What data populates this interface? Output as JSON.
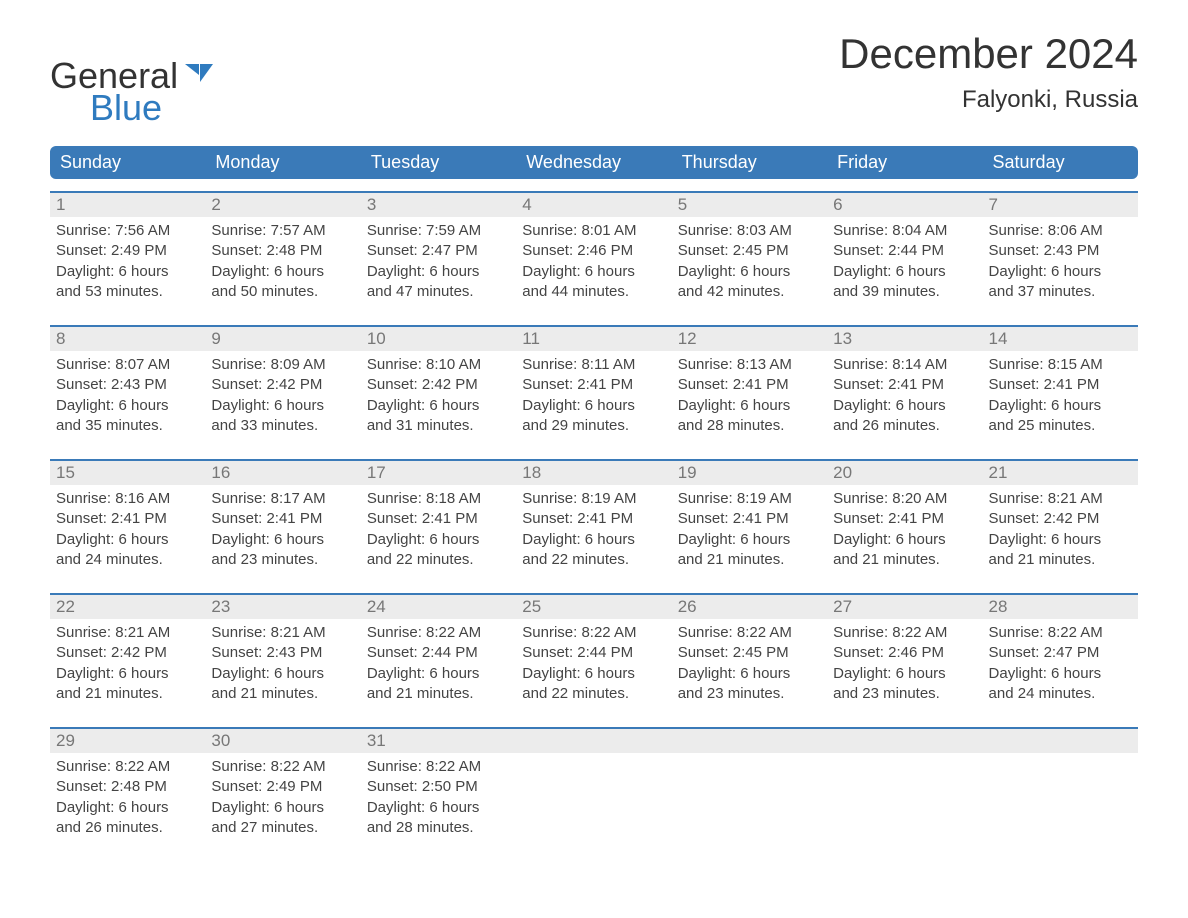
{
  "logo": {
    "general": "General",
    "blue": "Blue",
    "icon_color": "#2f7bbf"
  },
  "title": "December 2024",
  "location": "Falyonki, Russia",
  "colors": {
    "header_bg": "#3a7ab8",
    "header_text": "#ffffff",
    "daynum_bg": "#ececec",
    "daynum_text": "#777777",
    "body_text": "#444444",
    "week_border": "#3a7ab8",
    "logo_blue": "#2f7bbf",
    "page_bg": "#ffffff"
  },
  "dayheads": [
    "Sunday",
    "Monday",
    "Tuesday",
    "Wednesday",
    "Thursday",
    "Friday",
    "Saturday"
  ],
  "weeks": [
    [
      {
        "n": "1",
        "sr": "Sunrise: 7:56 AM",
        "ss": "Sunset: 2:49 PM",
        "d1": "Daylight: 6 hours",
        "d2": "and 53 minutes."
      },
      {
        "n": "2",
        "sr": "Sunrise: 7:57 AM",
        "ss": "Sunset: 2:48 PM",
        "d1": "Daylight: 6 hours",
        "d2": "and 50 minutes."
      },
      {
        "n": "3",
        "sr": "Sunrise: 7:59 AM",
        "ss": "Sunset: 2:47 PM",
        "d1": "Daylight: 6 hours",
        "d2": "and 47 minutes."
      },
      {
        "n": "4",
        "sr": "Sunrise: 8:01 AM",
        "ss": "Sunset: 2:46 PM",
        "d1": "Daylight: 6 hours",
        "d2": "and 44 minutes."
      },
      {
        "n": "5",
        "sr": "Sunrise: 8:03 AM",
        "ss": "Sunset: 2:45 PM",
        "d1": "Daylight: 6 hours",
        "d2": "and 42 minutes."
      },
      {
        "n": "6",
        "sr": "Sunrise: 8:04 AM",
        "ss": "Sunset: 2:44 PM",
        "d1": "Daylight: 6 hours",
        "d2": "and 39 minutes."
      },
      {
        "n": "7",
        "sr": "Sunrise: 8:06 AM",
        "ss": "Sunset: 2:43 PM",
        "d1": "Daylight: 6 hours",
        "d2": "and 37 minutes."
      }
    ],
    [
      {
        "n": "8",
        "sr": "Sunrise: 8:07 AM",
        "ss": "Sunset: 2:43 PM",
        "d1": "Daylight: 6 hours",
        "d2": "and 35 minutes."
      },
      {
        "n": "9",
        "sr": "Sunrise: 8:09 AM",
        "ss": "Sunset: 2:42 PM",
        "d1": "Daylight: 6 hours",
        "d2": "and 33 minutes."
      },
      {
        "n": "10",
        "sr": "Sunrise: 8:10 AM",
        "ss": "Sunset: 2:42 PM",
        "d1": "Daylight: 6 hours",
        "d2": "and 31 minutes."
      },
      {
        "n": "11",
        "sr": "Sunrise: 8:11 AM",
        "ss": "Sunset: 2:41 PM",
        "d1": "Daylight: 6 hours",
        "d2": "and 29 minutes."
      },
      {
        "n": "12",
        "sr": "Sunrise: 8:13 AM",
        "ss": "Sunset: 2:41 PM",
        "d1": "Daylight: 6 hours",
        "d2": "and 28 minutes."
      },
      {
        "n": "13",
        "sr": "Sunrise: 8:14 AM",
        "ss": "Sunset: 2:41 PM",
        "d1": "Daylight: 6 hours",
        "d2": "and 26 minutes."
      },
      {
        "n": "14",
        "sr": "Sunrise: 8:15 AM",
        "ss": "Sunset: 2:41 PM",
        "d1": "Daylight: 6 hours",
        "d2": "and 25 minutes."
      }
    ],
    [
      {
        "n": "15",
        "sr": "Sunrise: 8:16 AM",
        "ss": "Sunset: 2:41 PM",
        "d1": "Daylight: 6 hours",
        "d2": "and 24 minutes."
      },
      {
        "n": "16",
        "sr": "Sunrise: 8:17 AM",
        "ss": "Sunset: 2:41 PM",
        "d1": "Daylight: 6 hours",
        "d2": "and 23 minutes."
      },
      {
        "n": "17",
        "sr": "Sunrise: 8:18 AM",
        "ss": "Sunset: 2:41 PM",
        "d1": "Daylight: 6 hours",
        "d2": "and 22 minutes."
      },
      {
        "n": "18",
        "sr": "Sunrise: 8:19 AM",
        "ss": "Sunset: 2:41 PM",
        "d1": "Daylight: 6 hours",
        "d2": "and 22 minutes."
      },
      {
        "n": "19",
        "sr": "Sunrise: 8:19 AM",
        "ss": "Sunset: 2:41 PM",
        "d1": "Daylight: 6 hours",
        "d2": "and 21 minutes."
      },
      {
        "n": "20",
        "sr": "Sunrise: 8:20 AM",
        "ss": "Sunset: 2:41 PM",
        "d1": "Daylight: 6 hours",
        "d2": "and 21 minutes."
      },
      {
        "n": "21",
        "sr": "Sunrise: 8:21 AM",
        "ss": "Sunset: 2:42 PM",
        "d1": "Daylight: 6 hours",
        "d2": "and 21 minutes."
      }
    ],
    [
      {
        "n": "22",
        "sr": "Sunrise: 8:21 AM",
        "ss": "Sunset: 2:42 PM",
        "d1": "Daylight: 6 hours",
        "d2": "and 21 minutes."
      },
      {
        "n": "23",
        "sr": "Sunrise: 8:21 AM",
        "ss": "Sunset: 2:43 PM",
        "d1": "Daylight: 6 hours",
        "d2": "and 21 minutes."
      },
      {
        "n": "24",
        "sr": "Sunrise: 8:22 AM",
        "ss": "Sunset: 2:44 PM",
        "d1": "Daylight: 6 hours",
        "d2": "and 21 minutes."
      },
      {
        "n": "25",
        "sr": "Sunrise: 8:22 AM",
        "ss": "Sunset: 2:44 PM",
        "d1": "Daylight: 6 hours",
        "d2": "and 22 minutes."
      },
      {
        "n": "26",
        "sr": "Sunrise: 8:22 AM",
        "ss": "Sunset: 2:45 PM",
        "d1": "Daylight: 6 hours",
        "d2": "and 23 minutes."
      },
      {
        "n": "27",
        "sr": "Sunrise: 8:22 AM",
        "ss": "Sunset: 2:46 PM",
        "d1": "Daylight: 6 hours",
        "d2": "and 23 minutes."
      },
      {
        "n": "28",
        "sr": "Sunrise: 8:22 AM",
        "ss": "Sunset: 2:47 PM",
        "d1": "Daylight: 6 hours",
        "d2": "and 24 minutes."
      }
    ],
    [
      {
        "n": "29",
        "sr": "Sunrise: 8:22 AM",
        "ss": "Sunset: 2:48 PM",
        "d1": "Daylight: 6 hours",
        "d2": "and 26 minutes."
      },
      {
        "n": "30",
        "sr": "Sunrise: 8:22 AM",
        "ss": "Sunset: 2:49 PM",
        "d1": "Daylight: 6 hours",
        "d2": "and 27 minutes."
      },
      {
        "n": "31",
        "sr": "Sunrise: 8:22 AM",
        "ss": "Sunset: 2:50 PM",
        "d1": "Daylight: 6 hours",
        "d2": "and 28 minutes."
      },
      {
        "empty": true
      },
      {
        "empty": true
      },
      {
        "empty": true
      },
      {
        "empty": true
      }
    ]
  ]
}
